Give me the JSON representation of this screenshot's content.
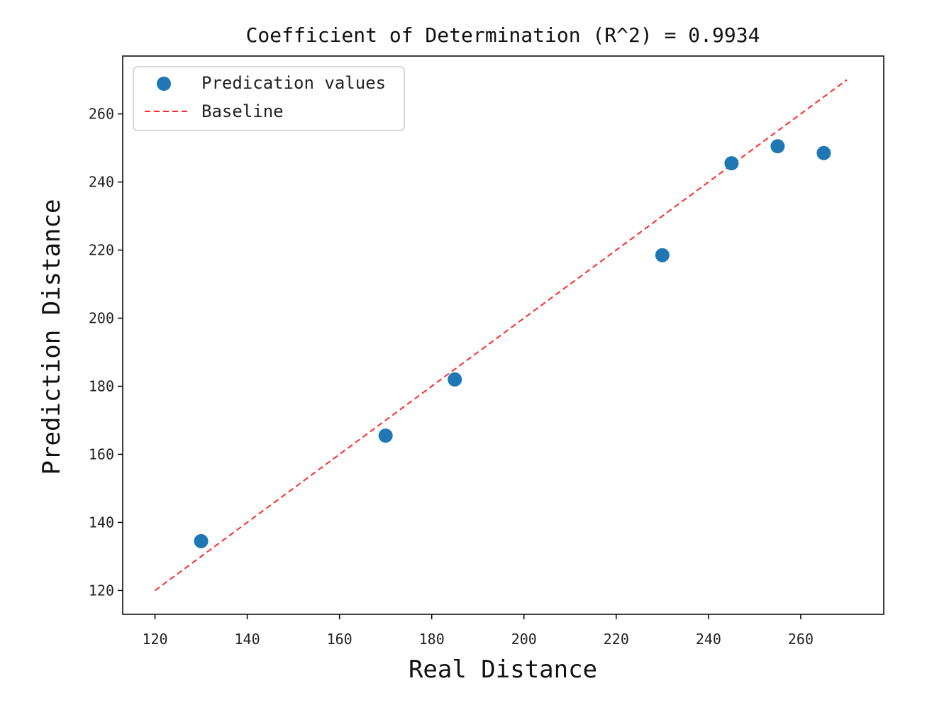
{
  "chart_data": {
    "type": "scatter",
    "title": "Coefficient of Determination (R^2) = 0.9934",
    "xlabel": "Real Distance",
    "ylabel": "Prediction Distance",
    "xlim": [
      113,
      278
    ],
    "ylim": [
      113,
      277
    ],
    "xticks": [
      120,
      140,
      160,
      180,
      200,
      220,
      240,
      260
    ],
    "yticks": [
      120,
      140,
      160,
      180,
      200,
      220,
      240,
      260
    ],
    "grid": false,
    "legend_position": "top-left",
    "series": [
      {
        "name": "Predication values",
        "kind": "scatter",
        "color": "#1f77b4",
        "x": [
          130,
          170,
          185,
          230,
          245,
          255,
          265
        ],
        "y": [
          134.5,
          165.5,
          182,
          218.5,
          245.5,
          250.5,
          248.5
        ]
      },
      {
        "name": "Baseline",
        "kind": "line",
        "style": "dashed",
        "color": "#ff2a2a",
        "x": [
          120,
          270
        ],
        "y": [
          120,
          270
        ]
      }
    ]
  }
}
